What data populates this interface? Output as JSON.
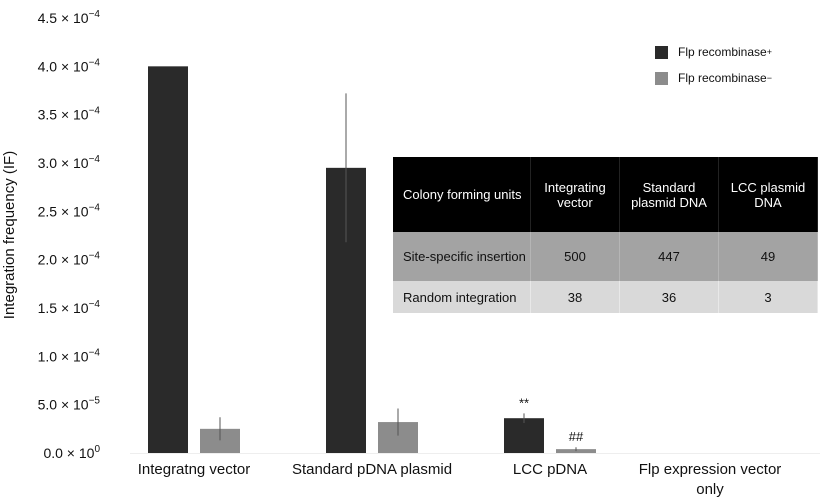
{
  "chart_data": {
    "type": "bar",
    "ylabel": "Integration frequency (IF)",
    "xlabel": "",
    "ylim": [
      0,
      0.00045
    ],
    "yticks": [
      {
        "value": 0,
        "mant": "0.0",
        "exp": "0"
      },
      {
        "value": 5e-05,
        "mant": "5.0",
        "exp": "−5"
      },
      {
        "value": 0.0001,
        "mant": "1.0",
        "exp": "−4"
      },
      {
        "value": 0.00015,
        "mant": "1.5",
        "exp": "−4"
      },
      {
        "value": 0.0002,
        "mant": "2.0",
        "exp": "−4"
      },
      {
        "value": 0.00025,
        "mant": "2.5",
        "exp": "−4"
      },
      {
        "value": 0.0003,
        "mant": "3.0",
        "exp": "−4"
      },
      {
        "value": 0.00035,
        "mant": "3.5",
        "exp": "−4"
      },
      {
        "value": 0.0004,
        "mant": "4.0",
        "exp": "−4"
      },
      {
        "value": 0.00045,
        "mant": "4.5",
        "exp": "−4"
      }
    ],
    "categories": [
      "Integratng vector",
      "Standard pDNA plasmid",
      "LCC pDNA",
      "Flp expression vector only"
    ],
    "series": [
      {
        "name": "Flp recombinase",
        "sup": "+",
        "color": "#2a2a2a",
        "values": [
          0.0004,
          0.000295,
          3.6e-05,
          0
        ],
        "errors": [
          0,
          7.7e-05,
          5e-06,
          0
        ],
        "annotations": [
          "",
          "",
          "**",
          ""
        ]
      },
      {
        "name": "Flp recombinase",
        "sup": "−",
        "color": "#8c8c8c",
        "values": [
          2.5e-05,
          3.2e-05,
          4e-06,
          0
        ],
        "errors": [
          1.2e-05,
          1.4e-05,
          2e-06,
          0
        ],
        "annotations": [
          "",
          "",
          "##",
          ""
        ]
      }
    ],
    "grid": false,
    "legend": "top-right"
  },
  "table": {
    "headers": [
      "Colony forming units",
      "Integrating vector",
      "Standard plasmid DNA",
      "LCC plasmid DNA"
    ],
    "rows": [
      [
        "Site-specific insertion",
        "500",
        "447",
        "49"
      ],
      [
        "Random integration",
        "38",
        "36",
        "3"
      ]
    ]
  }
}
